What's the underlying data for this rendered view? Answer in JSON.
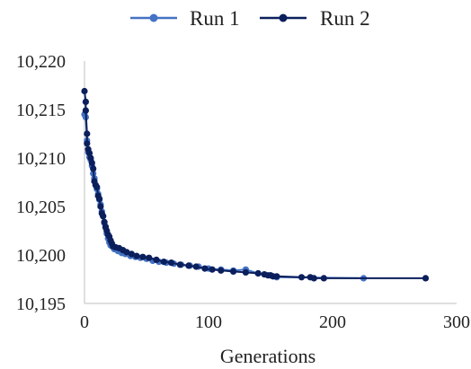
{
  "chart_data": {
    "type": "scatter",
    "title": "",
    "xlabel": "Generations",
    "ylabel": "",
    "xlim": [
      0,
      300
    ],
    "ylim": [
      10195,
      10220
    ],
    "xticks": [
      "0",
      "100",
      "200",
      "300"
    ],
    "yticks": [
      "10,195",
      "10,200",
      "10,205",
      "10,210",
      "10,215",
      "10,220"
    ],
    "grid": false,
    "legend": "top",
    "lines_connected": true,
    "series": [
      {
        "name": "Run 1",
        "color": "#4472C4",
        "x": [
          0,
          1,
          2,
          3,
          4,
          5,
          6,
          7,
          8,
          9,
          10,
          11,
          12,
          13,
          14,
          15,
          16,
          17,
          18,
          19,
          20,
          21,
          22,
          24,
          27,
          30,
          33,
          37,
          41,
          45,
          50,
          55,
          60,
          66,
          72,
          78,
          85,
          92,
          100,
          110,
          120,
          130,
          140,
          150,
          155,
          225
        ],
        "y": [
          10214.5,
          10214.2,
          10211.8,
          10210.6,
          10210.1,
          10209.8,
          10209.2,
          10208.4,
          10207.9,
          10207.2,
          10206.8,
          10206.3,
          10205.7,
          10205.2,
          10204.5,
          10204.0,
          10203.3,
          10202.8,
          10202.2,
          10201.7,
          10201.3,
          10201.0,
          10200.9,
          10200.6,
          10200.4,
          10200.2,
          10200.1,
          10199.9,
          10199.8,
          10199.7,
          10199.6,
          10199.4,
          10199.3,
          10199.2,
          10199.1,
          10199.0,
          10198.9,
          10198.8,
          10198.6,
          10198.5,
          10198.4,
          10198.5,
          10198.1,
          10197.9,
          10197.7,
          10197.6
        ]
      },
      {
        "name": "Run 2",
        "color": "#0B1F5C",
        "x": [
          0,
          1,
          1,
          2,
          2,
          3,
          4,
          5,
          6,
          7,
          8,
          9,
          10,
          11,
          12,
          13,
          14,
          15,
          16,
          17,
          18,
          19,
          20,
          21,
          22,
          23,
          25,
          28,
          31,
          34,
          38,
          42,
          47,
          52,
          58,
          64,
          70,
          77,
          84,
          90,
          97,
          103,
          110,
          120,
          130,
          140,
          145,
          148,
          150,
          152,
          155,
          175,
          182,
          185,
          193,
          275
        ],
        "y": [
          10216.9,
          10215.8,
          10214.9,
          10212.5,
          10211.5,
          10210.9,
          10210.5,
          10210.0,
          10209.5,
          10208.9,
          10207.6,
          10207.2,
          10207.0,
          10206.1,
          10205.8,
          10205.0,
          10204.3,
          10204.0,
          10203.4,
          10202.9,
          10202.5,
          10202.1,
          10201.9,
          10201.5,
          10201.2,
          10200.9,
          10200.8,
          10200.7,
          10200.5,
          10200.3,
          10200.1,
          10199.9,
          10199.8,
          10199.7,
          10199.5,
          10199.3,
          10199.2,
          10199.0,
          10198.9,
          10198.8,
          10198.6,
          10198.5,
          10198.4,
          10198.3,
          10198.2,
          10198.1,
          10198.0,
          10197.9,
          10197.9,
          10197.8,
          10197.8,
          10197.7,
          10197.7,
          10197.6,
          10197.6,
          10197.6
        ]
      }
    ]
  }
}
